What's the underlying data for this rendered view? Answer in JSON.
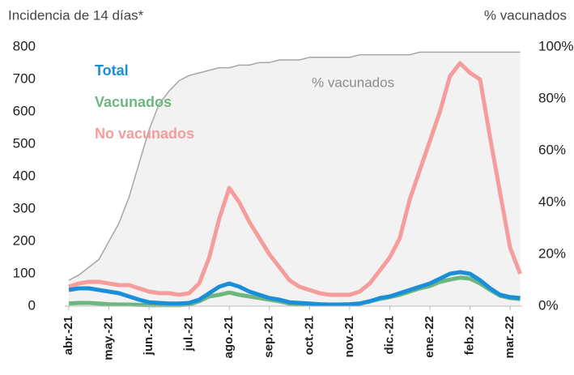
{
  "chart_data": {
    "type": "line",
    "y_axis_title": "Incidencia de 14 días*",
    "y2_axis_title": "% vacunados",
    "annotation": "% vacunados",
    "x": [
      0,
      0.25,
      0.5,
      0.75,
      1,
      1.25,
      1.5,
      1.75,
      2,
      2.25,
      2.5,
      2.75,
      3,
      3.25,
      3.5,
      3.75,
      4,
      4.25,
      4.5,
      4.75,
      5,
      5.25,
      5.5,
      5.75,
      6,
      6.25,
      6.5,
      6.75,
      7,
      7.25,
      7.5,
      7.75,
      8,
      8.25,
      8.5,
      8.75,
      9,
      9.25,
      9.5,
      9.75,
      10,
      10.25,
      10.5,
      10.75,
      11,
      11.25
    ],
    "xlim": [
      -0.1,
      11.3
    ],
    "xticks": [
      {
        "value": 0,
        "label": "abr.-21"
      },
      {
        "value": 1,
        "label": "may.-21"
      },
      {
        "value": 2,
        "label": "jun.-21"
      },
      {
        "value": 3,
        "label": "jul.-21"
      },
      {
        "value": 4,
        "label": "ago.-21"
      },
      {
        "value": 5,
        "label": "sep.-21"
      },
      {
        "value": 6,
        "label": "oct.-21"
      },
      {
        "value": 7,
        "label": "nov.-21"
      },
      {
        "value": 8,
        "label": "dic.-21"
      },
      {
        "value": 9,
        "label": "ene.-22"
      },
      {
        "value": 10,
        "label": "feb.-22"
      },
      {
        "value": 11,
        "label": "mar.-22"
      }
    ],
    "ylim": [
      0,
      800
    ],
    "yticks": [
      0,
      100,
      200,
      300,
      400,
      500,
      600,
      700,
      800
    ],
    "y2lim": [
      0,
      100
    ],
    "y2ticks": [
      {
        "value": 0,
        "label": "0%"
      },
      {
        "value": 20,
        "label": "20%"
      },
      {
        "value": 40,
        "label": "40%"
      },
      {
        "value": 60,
        "label": "60%"
      },
      {
        "value": 80,
        "label": "80%"
      },
      {
        "value": 100,
        "label": "100%"
      }
    ],
    "series": [
      {
        "name": "% vacunados",
        "color": "#a6a6a6",
        "area_color": "#f2f2f2",
        "axis": "y2",
        "legend": false,
        "values": [
          10,
          12,
          15,
          18,
          25,
          32,
          42,
          55,
          68,
          78,
          83,
          87,
          89,
          90,
          91,
          92,
          92,
          93,
          93,
          94,
          94,
          95,
          95,
          95,
          96,
          96,
          96,
          96,
          96,
          97,
          97,
          97,
          97,
          97,
          97,
          98,
          98,
          98,
          98,
          98,
          98,
          98,
          98,
          98,
          98,
          98
        ]
      },
      {
        "name": "No vacunados",
        "color": "#f59c9c",
        "values": [
          60,
          70,
          75,
          75,
          70,
          65,
          65,
          55,
          45,
          40,
          40,
          35,
          40,
          70,
          150,
          270,
          365,
          320,
          260,
          210,
          160,
          120,
          80,
          60,
          50,
          40,
          35,
          35,
          35,
          45,
          70,
          110,
          150,
          210,
          330,
          420,
          510,
          600,
          710,
          750,
          720,
          700,
          520,
          350,
          180,
          100
        ]
      },
      {
        "name": "Vacunados",
        "color": "#6db77f",
        "values": [
          8,
          10,
          10,
          8,
          6,
          5,
          5,
          4,
          3,
          3,
          3,
          3,
          5,
          15,
          30,
          35,
          42,
          35,
          30,
          25,
          20,
          15,
          8,
          6,
          5,
          5,
          5,
          5,
          5,
          8,
          15,
          22,
          28,
          35,
          45,
          55,
          62,
          75,
          82,
          88,
          85,
          70,
          50,
          32,
          25,
          22
        ]
      },
      {
        "name": "Total",
        "color": "#1a8ed8",
        "values": [
          50,
          55,
          55,
          50,
          45,
          40,
          30,
          20,
          12,
          10,
          8,
          8,
          10,
          20,
          40,
          60,
          70,
          60,
          45,
          35,
          25,
          20,
          12,
          10,
          8,
          6,
          5,
          5,
          6,
          8,
          15,
          25,
          30,
          40,
          50,
          60,
          70,
          85,
          100,
          105,
          100,
          80,
          55,
          35,
          28,
          25
        ]
      }
    ]
  }
}
